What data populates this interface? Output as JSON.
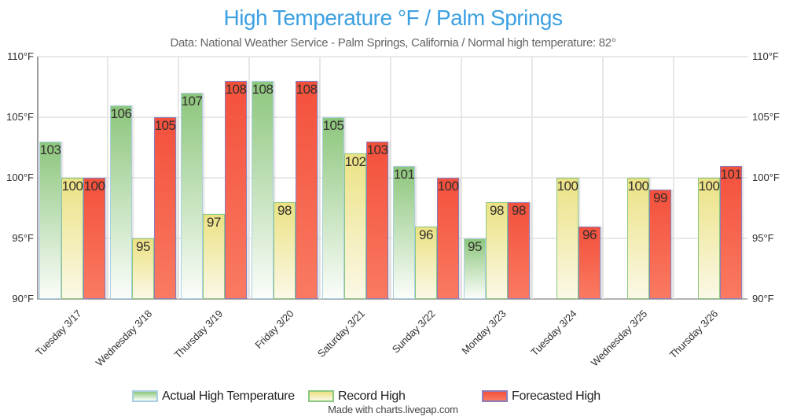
{
  "header": {
    "title": "High Temperature °F / Palm Springs",
    "subtitle": "Data: National Weather Service - Palm Springs, California / Normal high temperature: 82°"
  },
  "footer": {
    "credit": "Made with charts.livegap.com"
  },
  "colors": {
    "title": "#3da0e2",
    "subtitle": "#666666",
    "grid": "#e9e9e9",
    "axis": "#b3b3b3"
  },
  "chart_data": {
    "type": "bar",
    "title": "High Temperature °F / Palm Springs",
    "subtitle": "Data: National Weather Service - Palm Springs, California / Normal high temperature: 82°",
    "categories": [
      "Tuesday 3/17",
      "Wednesday 3/18",
      "Thursday 3/19",
      "Friday 3/20",
      "Saturday 3/21",
      "Sunday 3/22",
      "Monday 3/23",
      "Tuesday 3/24",
      "Wednesday 3/25",
      "Thursday 3/26"
    ],
    "series": [
      {
        "name": "Actual High Temperature",
        "values": [
          103,
          106,
          107,
          108,
          105,
          101,
          95,
          null,
          null,
          null
        ],
        "fill_top": "#8cc67c",
        "fill_bottom": "#fbfdfa",
        "border": "#aacfe3"
      },
      {
        "name": "Record High",
        "values": [
          100,
          95,
          97,
          98,
          102,
          96,
          98,
          100,
          100,
          100
        ],
        "fill_top": "#ebe283",
        "fill_bottom": "#fbf8e7",
        "border": "#8cc87f"
      },
      {
        "name": "Forecasted High",
        "values": [
          100,
          105,
          108,
          108,
          103,
          100,
          98,
          96,
          99,
          101
        ],
        "fill_top": "#f3503c",
        "fill_bottom": "#fa7a61",
        "border": "#8d7cba"
      }
    ],
    "ylim": [
      90,
      110
    ],
    "yticks": [
      90,
      95,
      100,
      105,
      110
    ],
    "ytick_suffix": "°F",
    "grid": true,
    "legend_position": "bottom",
    "value_labels": true
  }
}
